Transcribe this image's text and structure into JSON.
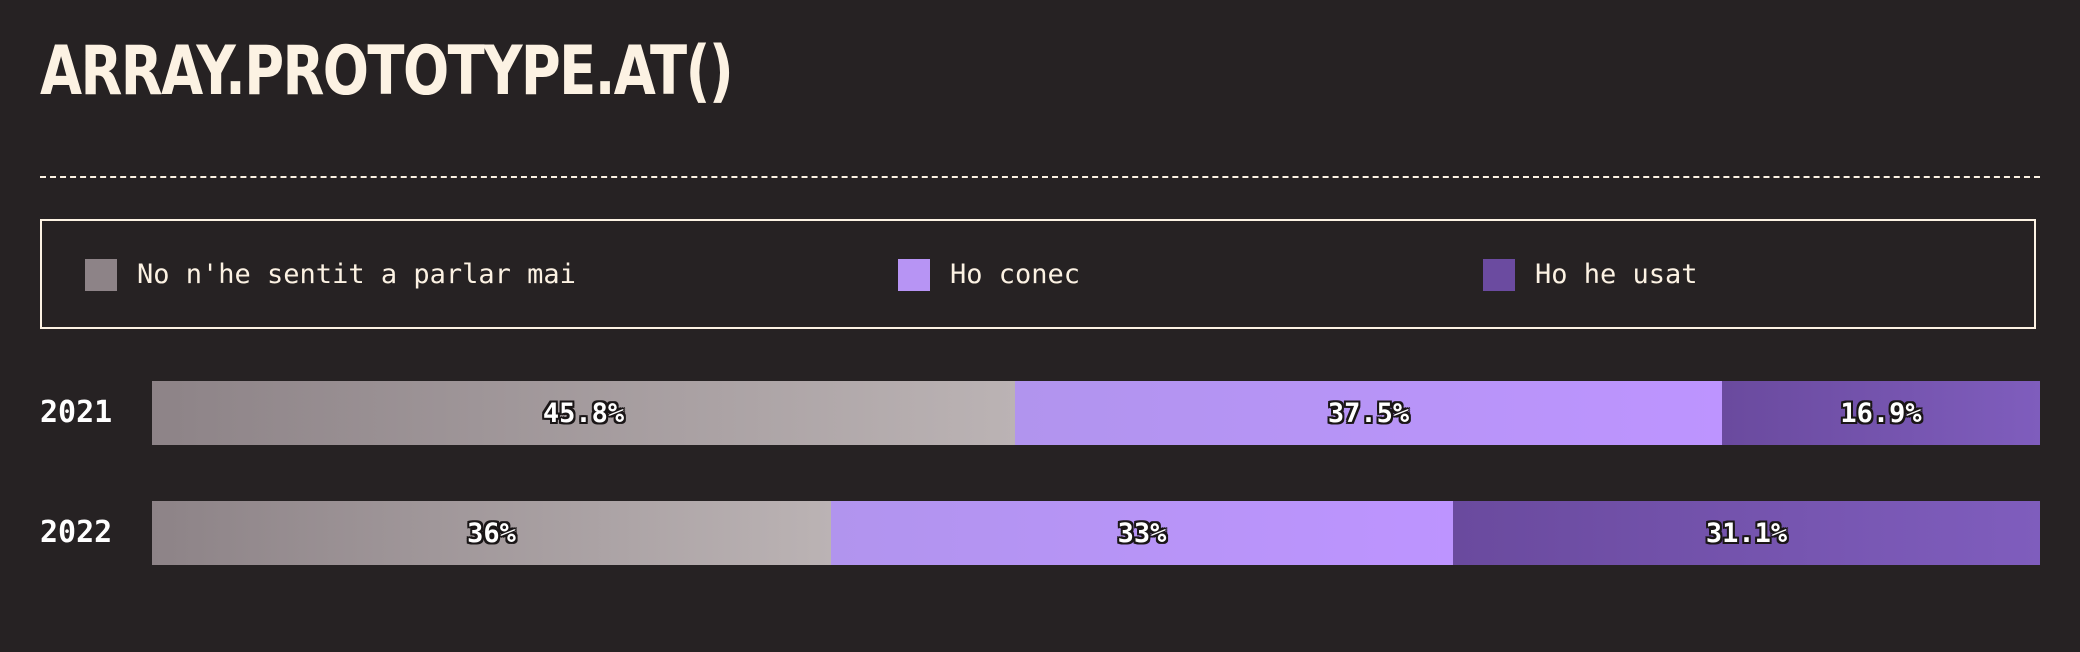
{
  "title": "ARRAY.PROTOTYPE.AT()",
  "legend": [
    {
      "label": "No n'he sentit a parlar mai",
      "color": "#8d8387"
    },
    {
      "label": "Ho conec",
      "color": "#b794f4"
    },
    {
      "label": "Ho he usat",
      "color": "#6b4ba0"
    }
  ],
  "colors": {
    "background": "#262223",
    "text": "#fcf2e3",
    "never_heard_gradient": [
      "#8d8387",
      "#bbb3b4"
    ],
    "know_it_gradient": [
      "#b194ee",
      "#bd94ff"
    ],
    "used_it_gradient": [
      "#6a4a9e",
      "#7f5dbd"
    ]
  },
  "chart_data": {
    "type": "bar",
    "orientation": "horizontal",
    "stacked": true,
    "categories": [
      "2021",
      "2022"
    ],
    "series": [
      {
        "name": "No n'he sentit a parlar mai",
        "values": [
          45.8,
          36
        ]
      },
      {
        "name": "Ho conec",
        "values": [
          37.5,
          33
        ]
      },
      {
        "name": "Ho he usat",
        "values": [
          16.9,
          31.1
        ]
      }
    ],
    "value_labels": [
      [
        "45.8%",
        "37.5%",
        "16.9%"
      ],
      [
        "36%",
        "33%",
        "31.1%"
      ]
    ],
    "title": "ARRAY.PROTOTYPE.AT()",
    "xlim": [
      0,
      100
    ],
    "legend": "top"
  }
}
